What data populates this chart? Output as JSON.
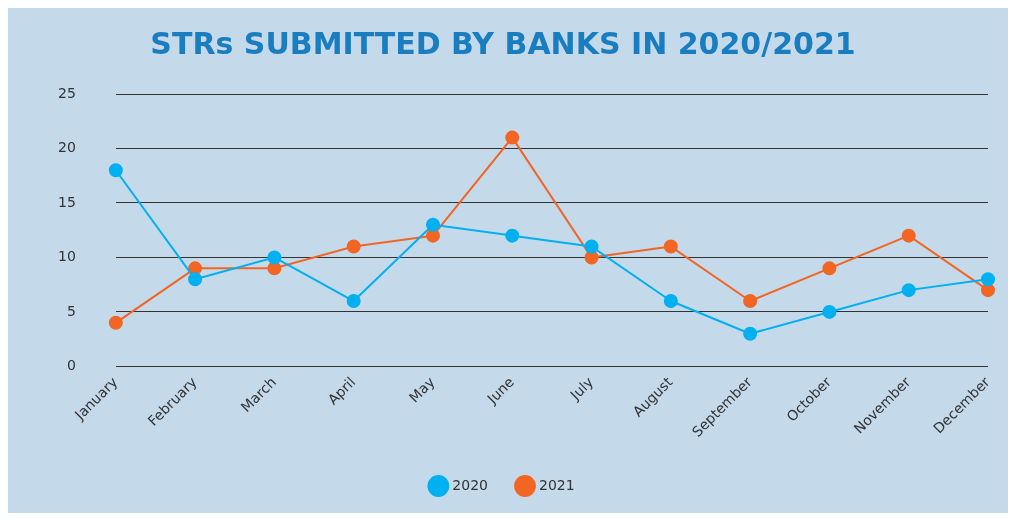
{
  "chart_data": {
    "type": "line",
    "title": "STRs SUBMITTED BY BANKS IN 2020/2021",
    "categories": [
      "January",
      "February",
      "March",
      "April",
      "May",
      "June",
      "July",
      "August",
      "September",
      "October",
      "November",
      "December"
    ],
    "series": [
      {
        "name": "2020",
        "color": "#00b0f0",
        "values": [
          18,
          8,
          10,
          6,
          13,
          12,
          11,
          6,
          3,
          5,
          7,
          8
        ]
      },
      {
        "name": "2021",
        "color": "#f26522",
        "values": [
          4,
          9,
          9,
          11,
          12,
          21,
          10,
          11,
          6,
          9,
          12,
          7
        ]
      }
    ],
    "ylim": [
      0,
      25
    ],
    "yticks": [
      0,
      5,
      10,
      15,
      20,
      25
    ],
    "grid": "y",
    "legend": "bottom",
    "marker": "circle",
    "line_style": "solid"
  }
}
